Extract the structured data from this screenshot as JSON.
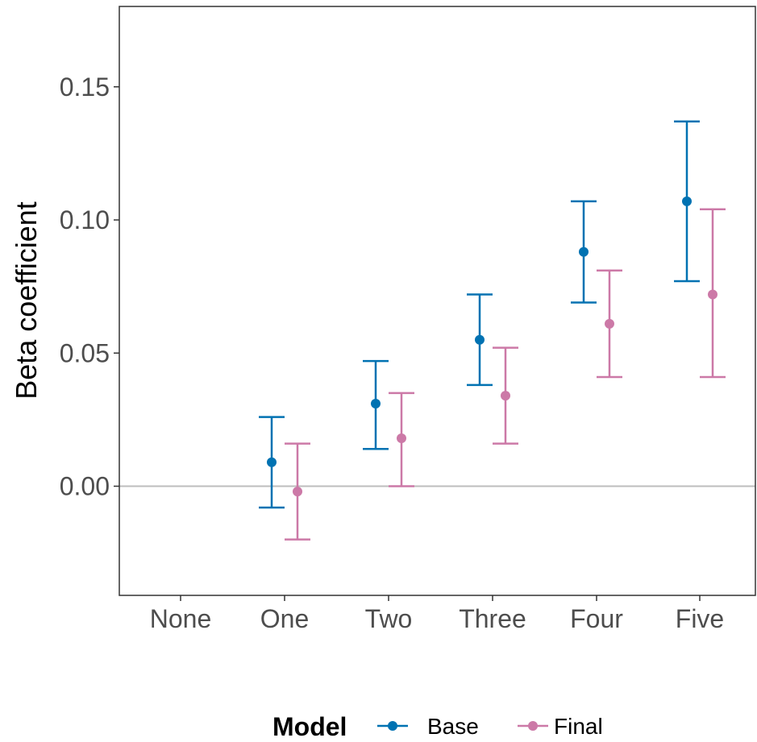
{
  "chart_data": {
    "type": "scatter",
    "subtype": "point-errorbar",
    "title": "",
    "xlabel": "",
    "ylabel": "Beta coefficient",
    "categories": [
      "None",
      "One",
      "Two",
      "Three",
      "Four",
      "Five"
    ],
    "ylim": [
      -0.04,
      0.18
    ],
    "yticks": [
      0.0,
      0.05,
      0.1,
      0.15
    ],
    "ytick_labels": [
      "0.00",
      "0.05",
      "0.10",
      "0.15"
    ],
    "reference_line": 0,
    "grid": false,
    "legend": {
      "title": "Model",
      "position": "bottom"
    },
    "series": [
      {
        "name": "Base",
        "color": "#0072B2",
        "points": [
          {
            "category": "One",
            "estimate": 0.009,
            "lower": -0.008,
            "upper": 0.026
          },
          {
            "category": "Two",
            "estimate": 0.031,
            "lower": 0.014,
            "upper": 0.047
          },
          {
            "category": "Three",
            "estimate": 0.055,
            "lower": 0.038,
            "upper": 0.072
          },
          {
            "category": "Four",
            "estimate": 0.088,
            "lower": 0.069,
            "upper": 0.107
          },
          {
            "category": "Five",
            "estimate": 0.107,
            "lower": 0.077,
            "upper": 0.137
          }
        ]
      },
      {
        "name": "Final",
        "color": "#CC79A7",
        "points": [
          {
            "category": "One",
            "estimate": -0.002,
            "lower": -0.02,
            "upper": 0.016
          },
          {
            "category": "Two",
            "estimate": 0.018,
            "lower": 0.0,
            "upper": 0.035
          },
          {
            "category": "Three",
            "estimate": 0.034,
            "lower": 0.016,
            "upper": 0.052
          },
          {
            "category": "Four",
            "estimate": 0.061,
            "lower": 0.041,
            "upper": 0.081
          },
          {
            "category": "Five",
            "estimate": 0.072,
            "lower": 0.041,
            "upper": 0.104
          }
        ]
      }
    ]
  }
}
